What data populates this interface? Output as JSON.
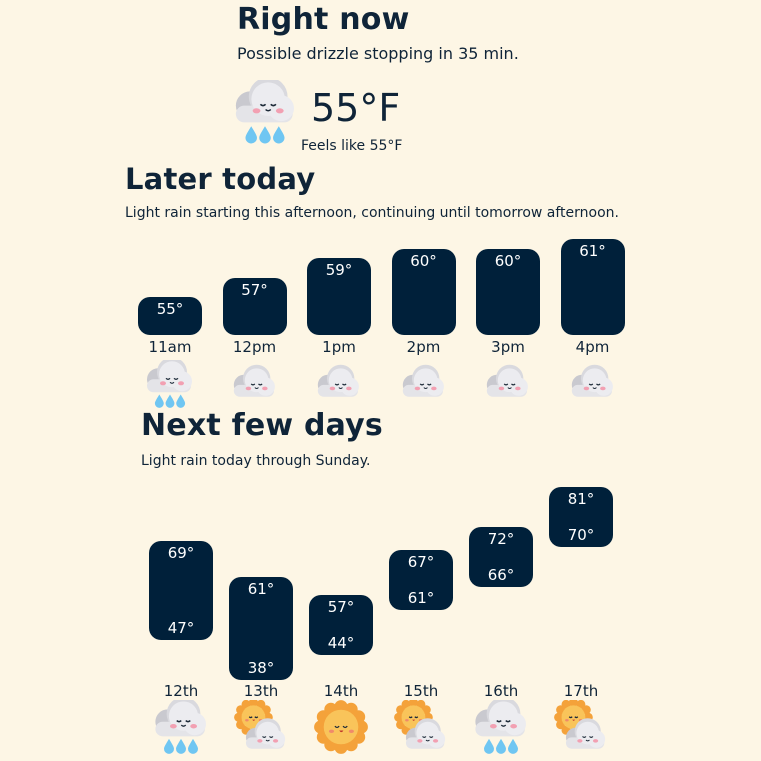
{
  "right_now": {
    "title": "Right now",
    "summary": "Possible drizzle stopping in 35 min.",
    "temperature": "55°F",
    "feels_like": "Feels like 55°F",
    "icon": "cloud-rain-icon"
  },
  "later_today": {
    "title": "Later today",
    "summary": "Light rain starting this afternoon, continuing until tomorrow afternoon.",
    "hours": [
      {
        "label": "11am",
        "temp": "55°",
        "value": 55,
        "icon": "cloud-rain-icon"
      },
      {
        "label": "12pm",
        "temp": "57°",
        "value": 57,
        "icon": "cloud-icon"
      },
      {
        "label": "1pm",
        "temp": "59°",
        "value": 59,
        "icon": "cloud-icon"
      },
      {
        "label": "2pm",
        "temp": "60°",
        "value": 60,
        "icon": "cloud-icon"
      },
      {
        "label": "3pm",
        "temp": "60°",
        "value": 60,
        "icon": "cloud-icon"
      },
      {
        "label": "4pm",
        "temp": "61°",
        "value": 61,
        "icon": "cloud-icon"
      }
    ]
  },
  "next_days": {
    "title": "Next few days",
    "summary": "Light rain today through Sunday.",
    "days": [
      {
        "label": "12th",
        "high": "69°",
        "low": "47°",
        "high_value": 69,
        "low_value": 47,
        "icon": "cloud-rain-icon"
      },
      {
        "label": "13th",
        "high": "61°",
        "low": "38°",
        "high_value": 61,
        "low_value": 38,
        "icon": "sun-cloud-icon"
      },
      {
        "label": "14th",
        "high": "57°",
        "low": "44°",
        "high_value": 57,
        "low_value": 44,
        "icon": "sun-icon"
      },
      {
        "label": "15th",
        "high": "67°",
        "low": "61°",
        "high_value": 67,
        "low_value": 61,
        "icon": "sun-cloud-icon"
      },
      {
        "label": "16th",
        "high": "72°",
        "low": "66°",
        "high_value": 72,
        "low_value": 66,
        "icon": "cloud-rain-icon"
      },
      {
        "label": "17th",
        "high": "81°",
        "low": "70°",
        "high_value": 81,
        "low_value": 70,
        "icon": "sun-cloud-icon"
      }
    ]
  },
  "colors": {
    "background": "#fdf6e5",
    "bar": "#00203a",
    "text": "#0f2438",
    "rain": "#6fc6f2",
    "sun": "#f6a93b"
  }
}
